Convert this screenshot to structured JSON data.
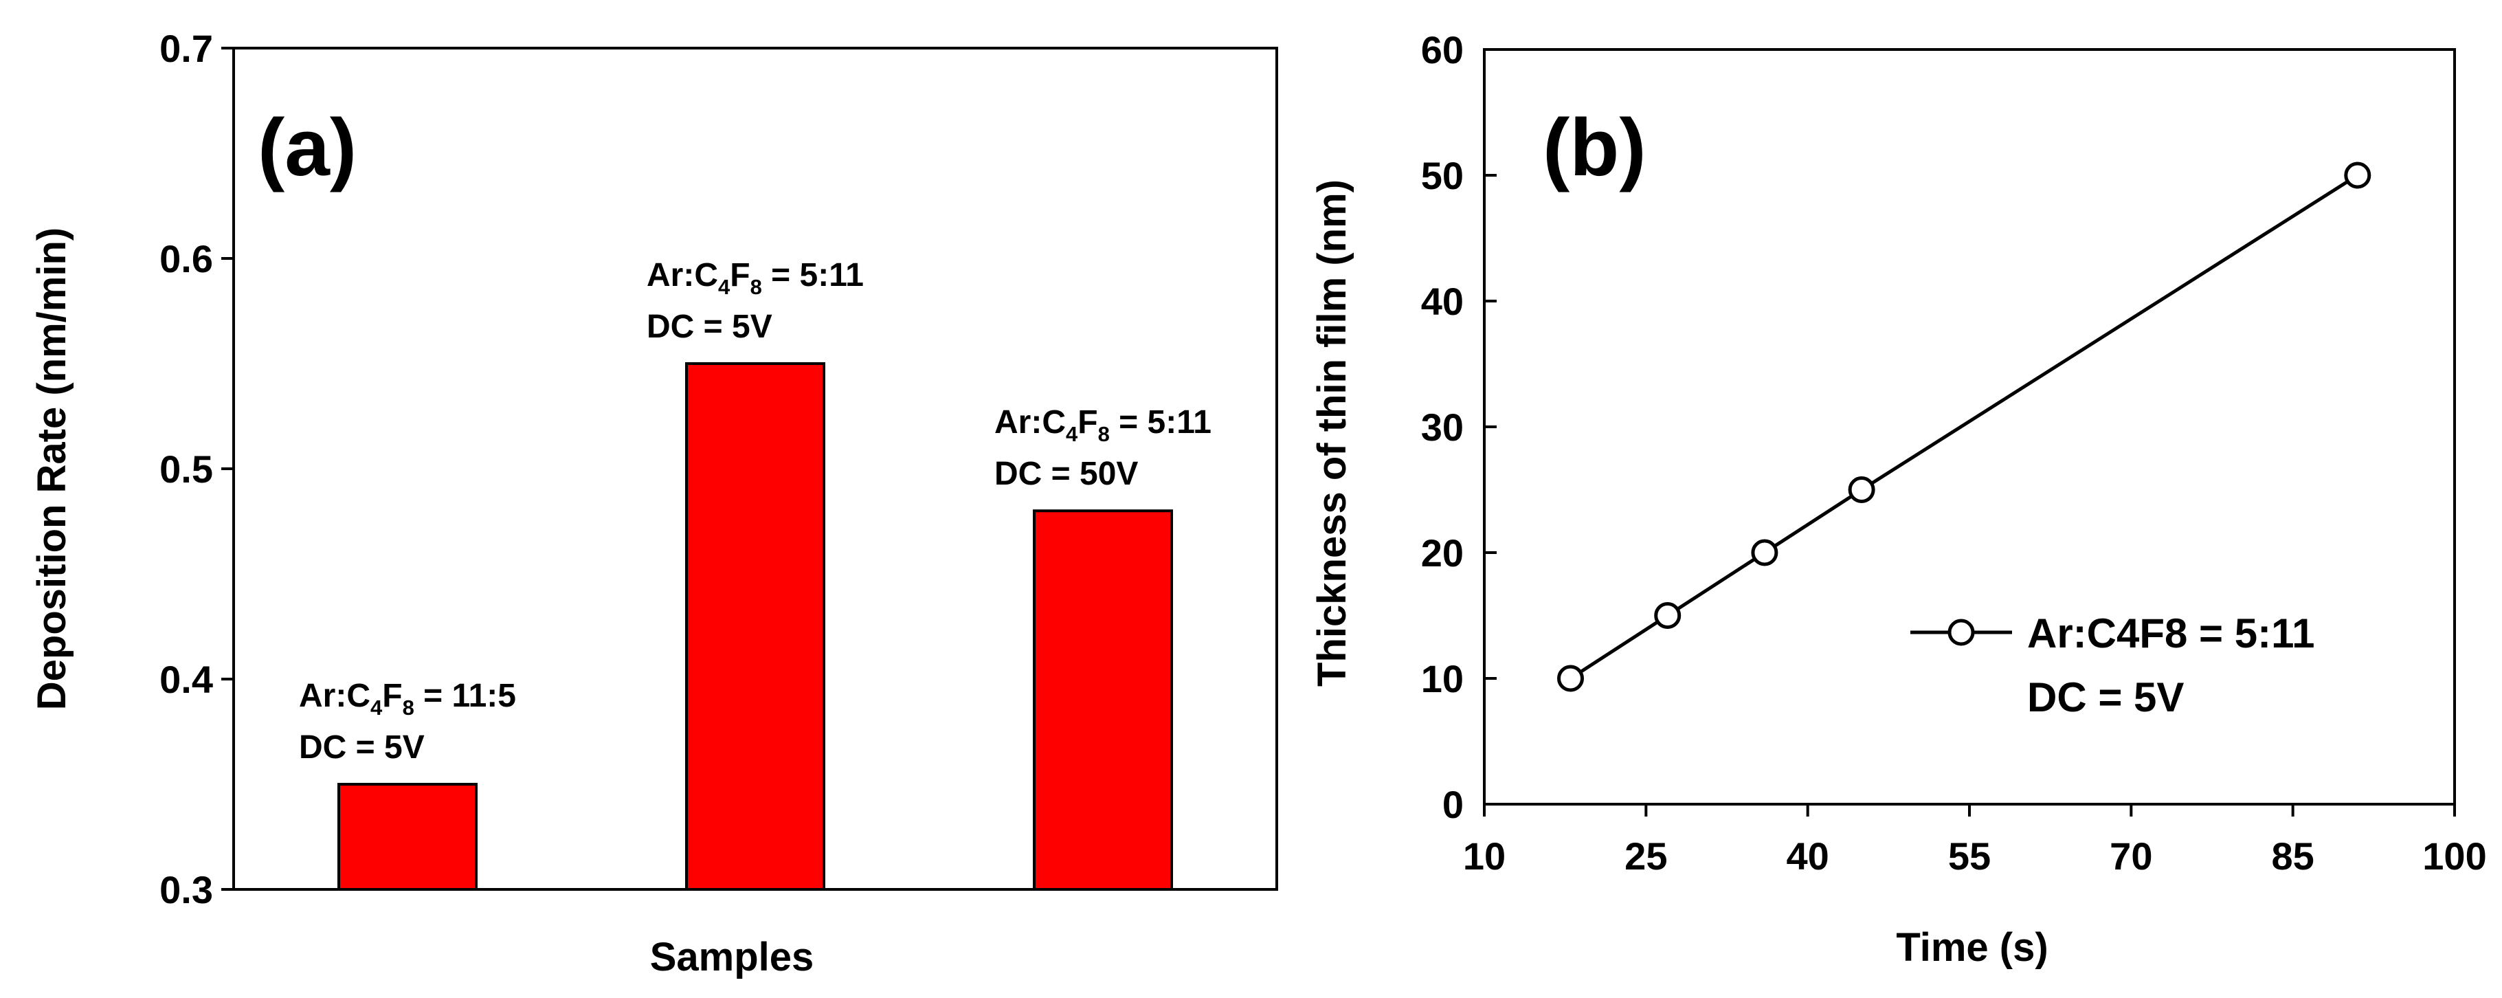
{
  "chart_data": [
    {
      "type": "bar",
      "panel_label": "(a)",
      "title": "",
      "xlabel": "Samples",
      "ylabel": "Deposition Rate (nm/min)",
      "ylim": [
        0.3,
        0.7
      ],
      "yticks": [
        "0.3",
        "0.4",
        "0.5",
        "0.6",
        "0.7"
      ],
      "bar_color": "#ff0000",
      "categories": [
        "Ar:C4F8 = 11:5, DC = 5V",
        "Ar:C4F8 = 5:11, DC = 5V",
        "Ar:C4F8 = 5:11, DC = 50V"
      ],
      "values": [
        0.35,
        0.55,
        0.48
      ],
      "annotations": [
        {
          "line1_prefix": "Ar:C",
          "sub1": "4",
          "mid": "F",
          "sub2": "8",
          "line1_suffix": " = 11:5",
          "line2": "DC = 5V"
        },
        {
          "line1_prefix": "Ar:C",
          "sub1": "4",
          "mid": "F",
          "sub2": "8",
          "line1_suffix": " = 5:11",
          "line2": "DC = 5V"
        },
        {
          "line1_prefix": "Ar:C",
          "sub1": "4",
          "mid": "F",
          "sub2": "8",
          "line1_suffix": " = 5:11",
          "line2": "DC = 50V"
        }
      ]
    },
    {
      "type": "line",
      "panel_label": "(b)",
      "title": "",
      "xlabel": "Time (s)",
      "ylabel": "Thickness of thin film (nm)",
      "xlim": [
        10,
        100
      ],
      "ylim": [
        0,
        60
      ],
      "xticks": [
        "10",
        "25",
        "40",
        "55",
        "70",
        "85",
        "100"
      ],
      "yticks": [
        "0",
        "10",
        "20",
        "30",
        "40",
        "50",
        "60"
      ],
      "series": [
        {
          "name": "Ar:C4F8 = 5:11",
          "x": [
            18,
            27,
            36,
            45,
            91
          ],
          "y": [
            10,
            15,
            20,
            25,
            50
          ],
          "marker": "open-circle",
          "color": "#000000"
        }
      ],
      "legend": {
        "line1": "Ar:C4F8 = 5:11",
        "line2": "DC = 5V",
        "position": "center-right"
      }
    }
  ]
}
